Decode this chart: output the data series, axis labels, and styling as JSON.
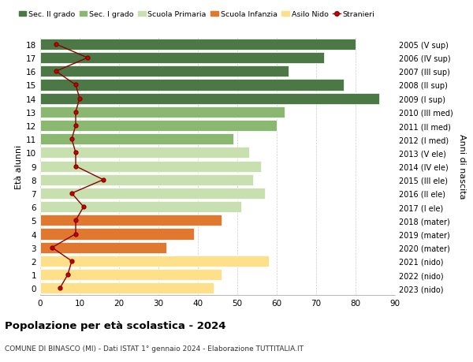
{
  "ages": [
    0,
    1,
    2,
    3,
    4,
    5,
    6,
    7,
    8,
    9,
    10,
    11,
    12,
    13,
    14,
    15,
    16,
    17,
    18
  ],
  "bar_values": [
    44,
    46,
    58,
    32,
    39,
    46,
    51,
    57,
    54,
    56,
    53,
    49,
    60,
    62,
    86,
    77,
    63,
    72,
    80
  ],
  "bar_colors": [
    "#FFE08A",
    "#FFE08A",
    "#FFE08A",
    "#E07830",
    "#E07830",
    "#E07830",
    "#C8DFB0",
    "#C8DFB0",
    "#C8DFB0",
    "#C8DFB0",
    "#C8DFB0",
    "#8AB870",
    "#8AB870",
    "#8AB870",
    "#4B7844",
    "#4B7844",
    "#4B7844",
    "#4B7844",
    "#4B7844"
  ],
  "right_labels": [
    "2023 (nido)",
    "2022 (nido)",
    "2021 (nido)",
    "2020 (mater)",
    "2019 (mater)",
    "2018 (mater)",
    "2017 (I ele)",
    "2016 (II ele)",
    "2015 (III ele)",
    "2014 (IV ele)",
    "2013 (V ele)",
    "2012 (I med)",
    "2011 (II med)",
    "2010 (III med)",
    "2009 (I sup)",
    "2008 (II sup)",
    "2007 (III sup)",
    "2006 (IV sup)",
    "2005 (V sup)"
  ],
  "stranieri_values": [
    5,
    7,
    8,
    3,
    9,
    9,
    11,
    8,
    16,
    9,
    9,
    8,
    9,
    9,
    10,
    9,
    4,
    12,
    4
  ],
  "legend_labels": [
    "Sec. II grado",
    "Sec. I grado",
    "Scuola Primaria",
    "Scuola Infanzia",
    "Asilo Nido",
    "Stranieri"
  ],
  "legend_colors": [
    "#4B7844",
    "#8AB870",
    "#C8DFB0",
    "#E07830",
    "#FFE08A",
    "#8B0000"
  ],
  "title": "Popolazione per età scolastica - 2024",
  "subtitle": "COMUNE DI BINASCO (MI) - Dati ISTAT 1° gennaio 2024 - Elaborazione TUTTITALIA.IT",
  "ylabel_left": "Età alunni",
  "ylabel_right": "Anni di nascita",
  "xlim": [
    0,
    90
  ],
  "fig_width": 6.0,
  "fig_height": 4.6,
  "dpi": 100
}
